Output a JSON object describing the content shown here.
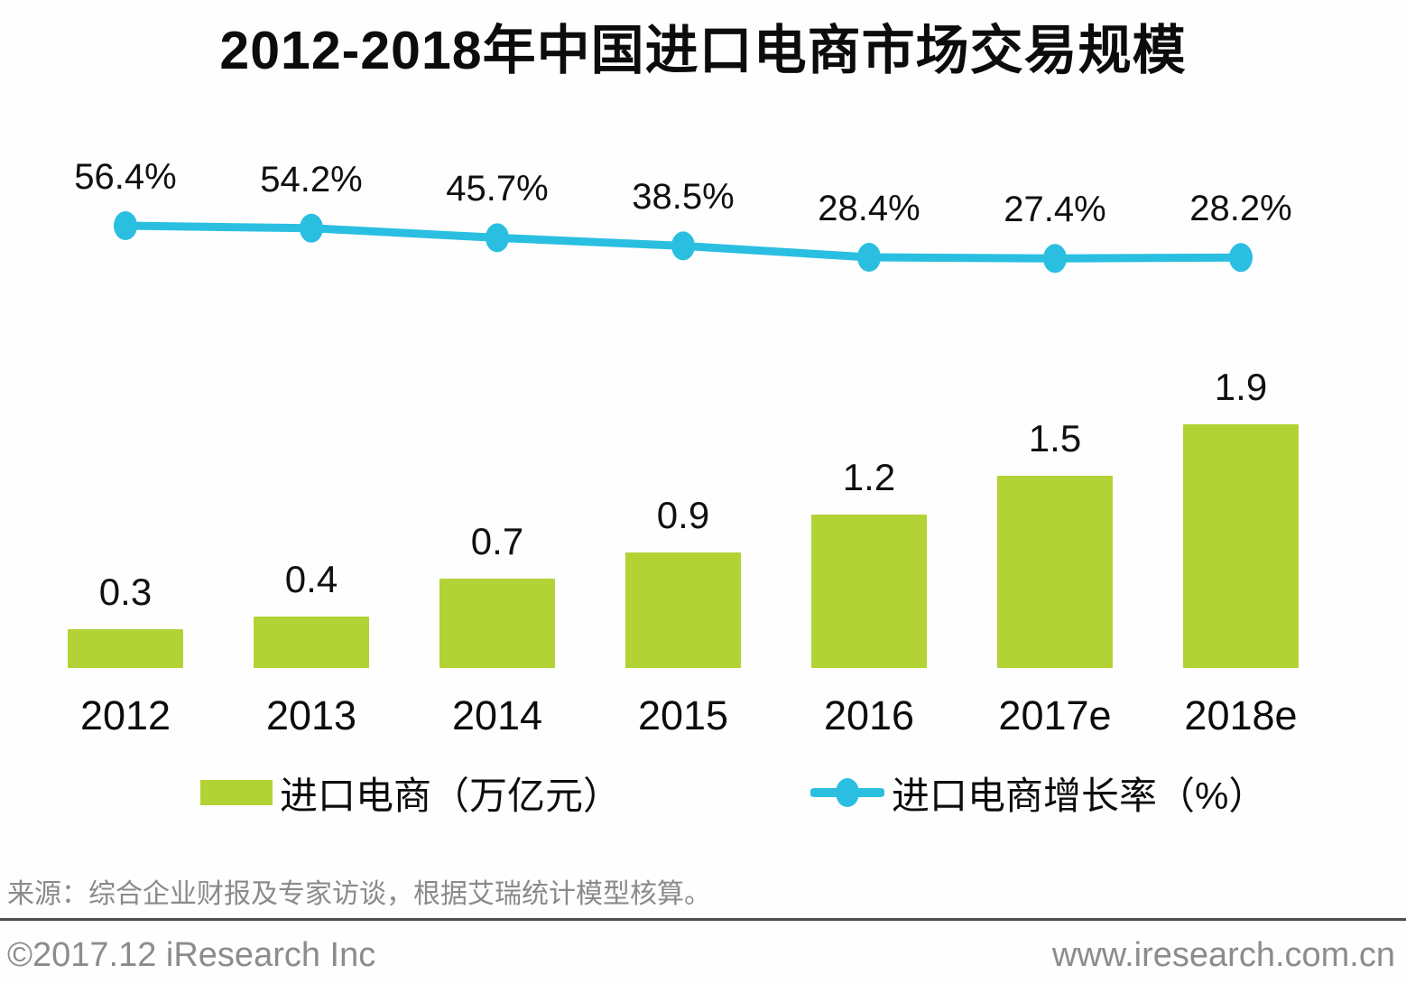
{
  "title": "2012-2018年中国进口电商市场交易规模",
  "chart_data": {
    "type": "bar",
    "subtype": "bar-with-line-overlay",
    "categories": [
      "2012",
      "2013",
      "2014",
      "2015",
      "2016",
      "2017e",
      "2018e"
    ],
    "series": [
      {
        "name": "进口电商（万亿元）",
        "type": "bar",
        "values": [
          0.3,
          0.4,
          0.7,
          0.9,
          1.2,
          1.5,
          1.9
        ],
        "labels": [
          "0.3",
          "0.4",
          "0.7",
          "0.9",
          "1.2",
          "1.5",
          "1.9"
        ],
        "color": "#b2d235"
      },
      {
        "name": "进口电商增长率（%）",
        "type": "line",
        "values": [
          56.4,
          54.2,
          45.7,
          38.5,
          28.4,
          27.4,
          28.2
        ],
        "labels": [
          "56.4%",
          "54.2%",
          "45.7%",
          "38.5%",
          "28.4%",
          "27.4%",
          "28.2%"
        ],
        "color": "#2abfe1"
      }
    ],
    "title": "2012-2018年中国进口电商市场交易规模",
    "xlabel": "",
    "ylabel": "",
    "ylim_bar": [
      0,
      2.2
    ],
    "grid": false,
    "axes_hidden": true,
    "legend_position": "bottom"
  },
  "legend": {
    "bar_label": "进口电商（万亿元）",
    "line_label": "进口电商增长率（%）"
  },
  "source_note": "来源：综合企业财报及专家访谈，根据艾瑞统计模型核算。",
  "footer": {
    "left": "©2017.12 iResearch Inc",
    "right": "www.iresearch.com.cn"
  },
  "colors": {
    "bar": "#b2d235",
    "line": "#2abfe1",
    "text": "#0c0c0c",
    "muted": "#8a8a8a",
    "divider": "#4d4d4d",
    "background": "#ffffff"
  }
}
